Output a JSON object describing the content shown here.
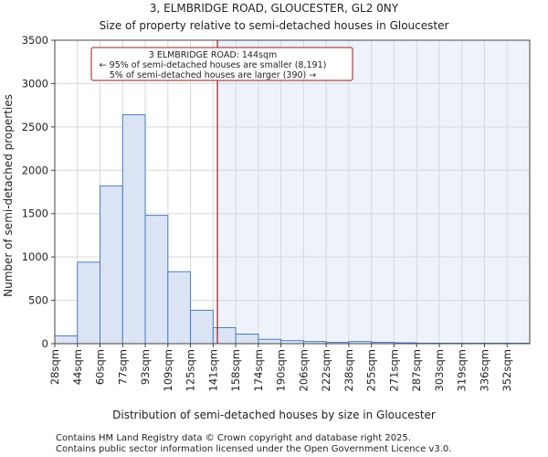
{
  "title_line1": "3, ELMBRIDGE ROAD, GLOUCESTER, GL2 0NY",
  "title_line2": "Size of property relative to semi-detached houses in Gloucester",
  "footer_line1": "Contains HM Land Registry data © Crown copyright and database right 2025.",
  "footer_line2": "Contains public sector information licensed under the Open Government Licence v3.0.",
  "annotation": {
    "line1": "3 ELMBRIDGE ROAD: 144sqm",
    "line2": "← 95% of semi-detached houses are smaller (8,191)",
    "line3": "5% of semi-detached houses are larger (390) →"
  },
  "colors": {
    "bar_fill": "#dae4f4",
    "bar_stroke": "#4d7cc1",
    "marker": "#9b1c1c",
    "highlight": "#eef2fb",
    "grid": "#d8d8d8"
  },
  "chart_data": {
    "type": "bar",
    "title": "Size of property relative to semi-detached houses in Gloucester",
    "xlabel": "Distribution of semi-detached houses by size in Gloucester",
    "ylabel": "Number of semi-detached properties",
    "ylim": [
      0,
      3500
    ],
    "yticks": [
      0,
      500,
      1000,
      1500,
      2000,
      2500,
      3000,
      3500
    ],
    "categories": [
      "28sqm",
      "44sqm",
      "60sqm",
      "77sqm",
      "93sqm",
      "109sqm",
      "125sqm",
      "141sqm",
      "158sqm",
      "174sqm",
      "190sqm",
      "206sqm",
      "222sqm",
      "238sqm",
      "255sqm",
      "271sqm",
      "287sqm",
      "303sqm",
      "319sqm",
      "336sqm",
      "352sqm"
    ],
    "values": [
      90,
      940,
      1820,
      2640,
      1480,
      830,
      385,
      185,
      110,
      50,
      35,
      25,
      15,
      25,
      15,
      10,
      5,
      5,
      5,
      5,
      5
    ],
    "marker_value": 144,
    "marker_bin_position": 7.19,
    "grid": true
  }
}
